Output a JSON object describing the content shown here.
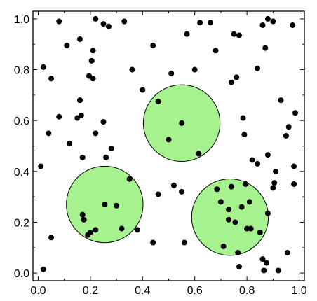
{
  "chart_data": {
    "type": "scatter",
    "xlim": [
      -0.02,
      1.02
    ],
    "ylim": [
      -0.03,
      1.03
    ],
    "x_ticks": [
      "0.0",
      "0.2",
      "0.4",
      "0.6",
      "0.8",
      "1.0"
    ],
    "y_ticks": [
      "0.0",
      "0.2",
      "0.4",
      "0.6",
      "0.8",
      "1.0"
    ],
    "grid": false,
    "circle_fill_color": "#a6f28f",
    "point_color": "#000000",
    "circles": [
      {
        "cx": 0.55,
        "cy": 0.59,
        "r": 0.147
      },
      {
        "cx": 0.255,
        "cy": 0.27,
        "r": 0.147
      },
      {
        "cx": 0.735,
        "cy": 0.22,
        "r": 0.147
      }
    ],
    "points": [
      [
        0.01,
        0.42
      ],
      [
        0.02,
        0.81
      ],
      [
        0.02,
        0.015
      ],
      [
        0.04,
        0.55
      ],
      [
        0.05,
        0.765
      ],
      [
        0.05,
        0.14
      ],
      [
        0.08,
        0.99
      ],
      [
        0.08,
        0.615
      ],
      [
        0.11,
        0.895
      ],
      [
        0.12,
        0.51
      ],
      [
        0.15,
        0.61
      ],
      [
        0.16,
        0.92
      ],
      [
        0.16,
        0.68
      ],
      [
        0.165,
        0.62
      ],
      [
        0.17,
        0.455
      ],
      [
        0.17,
        0.23
      ],
      [
        0.175,
        0.21
      ],
      [
        0.19,
        0.15
      ],
      [
        0.195,
        0.775
      ],
      [
        0.2,
        0.16
      ],
      [
        0.205,
        0.835
      ],
      [
        0.21,
        0.875
      ],
      [
        0.21,
        0.765
      ],
      [
        0.22,
        0.55
      ],
      [
        0.22,
        0.17
      ],
      [
        0.22,
        1.0
      ],
      [
        0.25,
        0.595
      ],
      [
        0.25,
        0.98
      ],
      [
        0.255,
        0.27
      ],
      [
        0.26,
        0.455
      ],
      [
        0.27,
        0.97
      ],
      [
        0.28,
        0.49
      ],
      [
        0.3,
        0.265
      ],
      [
        0.32,
        0.175
      ],
      [
        0.33,
        0.99
      ],
      [
        0.35,
        0.37
      ],
      [
        0.36,
        0.8
      ],
      [
        0.38,
        0.17
      ],
      [
        0.4,
        0.72
      ],
      [
        0.44,
        0.895
      ],
      [
        0.44,
        0.12
      ],
      [
        0.46,
        0.31
      ],
      [
        0.46,
        0.675
      ],
      [
        0.5,
        0.525
      ],
      [
        0.51,
        0.785
      ],
      [
        0.52,
        0.345
      ],
      [
        0.55,
        0.59
      ],
      [
        0.55,
        0.32
      ],
      [
        0.56,
        0.12
      ],
      [
        0.57,
        0.94
      ],
      [
        0.6,
        0.8
      ],
      [
        0.615,
        0.47
      ],
      [
        0.62,
        0.985
      ],
      [
        0.66,
        0.985
      ],
      [
        0.68,
        0.875
      ],
      [
        0.685,
        0.33
      ],
      [
        0.7,
        0.28
      ],
      [
        0.71,
        0.105
      ],
      [
        0.73,
        0.25
      ],
      [
        0.73,
        0.21
      ],
      [
        0.74,
        0.34
      ],
      [
        0.74,
        0.75
      ],
      [
        0.75,
        0.94
      ],
      [
        0.755,
        0.2
      ],
      [
        0.76,
        0.77
      ],
      [
        0.765,
        0.08
      ],
      [
        0.77,
        0.935
      ],
      [
        0.77,
        0.025
      ],
      [
        0.78,
        0.26
      ],
      [
        0.785,
        0.61
      ],
      [
        0.79,
        0.545
      ],
      [
        0.795,
        0.35
      ],
      [
        0.8,
        0.175
      ],
      [
        0.81,
        0.28
      ],
      [
        0.815,
        0.175
      ],
      [
        0.82,
        0.445
      ],
      [
        0.84,
        0.43
      ],
      [
        0.84,
        0.805
      ],
      [
        0.85,
        0.16
      ],
      [
        0.86,
        0.055
      ],
      [
        0.86,
        0.975
      ],
      [
        0.865,
        0.01
      ],
      [
        0.87,
        0.885
      ],
      [
        0.875,
        0.04
      ],
      [
        0.88,
        1.0
      ],
      [
        0.88,
        0.465
      ],
      [
        0.88,
        0.235
      ],
      [
        0.9,
        0.99
      ],
      [
        0.9,
        0.335
      ],
      [
        0.905,
        0.355
      ],
      [
        0.91,
        0.4
      ],
      [
        0.92,
        0.01
      ],
      [
        0.93,
        0.68
      ],
      [
        0.95,
        0.54
      ],
      [
        0.955,
        0.08
      ],
      [
        0.96,
        0.575
      ],
      [
        0.975,
        0.975
      ],
      [
        0.98,
        0.42
      ],
      [
        0.98,
        0.35
      ],
      [
        0.985,
        0.63
      ]
    ]
  }
}
